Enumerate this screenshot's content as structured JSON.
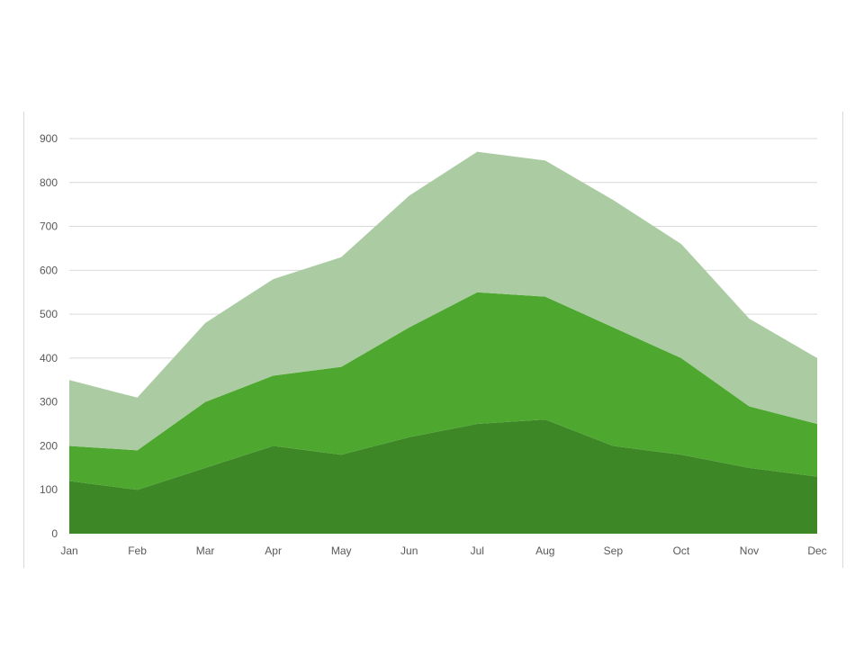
{
  "chart_data": {
    "type": "area",
    "stacked": true,
    "categories": [
      "Jan",
      "Feb",
      "Mar",
      "Apr",
      "May",
      "Jun",
      "Jul",
      "Aug",
      "Sep",
      "Oct",
      "Nov",
      "Dec"
    ],
    "series": [
      {
        "values": [
          120,
          100,
          150,
          200,
          180,
          220,
          250,
          260,
          200,
          180,
          150,
          130
        ],
        "color": "#3d8726"
      },
      {
        "values": [
          80,
          90,
          150,
          160,
          200,
          250,
          300,
          280,
          270,
          220,
          140,
          120
        ],
        "color": "#4ea830"
      },
      {
        "values": [
          150,
          120,
          180,
          220,
          250,
          300,
          320,
          310,
          290,
          260,
          200,
          150
        ],
        "color": "#abcca2"
      }
    ],
    "ylim": [
      0,
      900
    ],
    "yticks": [
      0,
      100,
      200,
      300,
      400,
      500,
      600,
      700,
      800,
      900
    ],
    "grid": true,
    "title": "",
    "xlabel": "",
    "ylabel": ""
  }
}
